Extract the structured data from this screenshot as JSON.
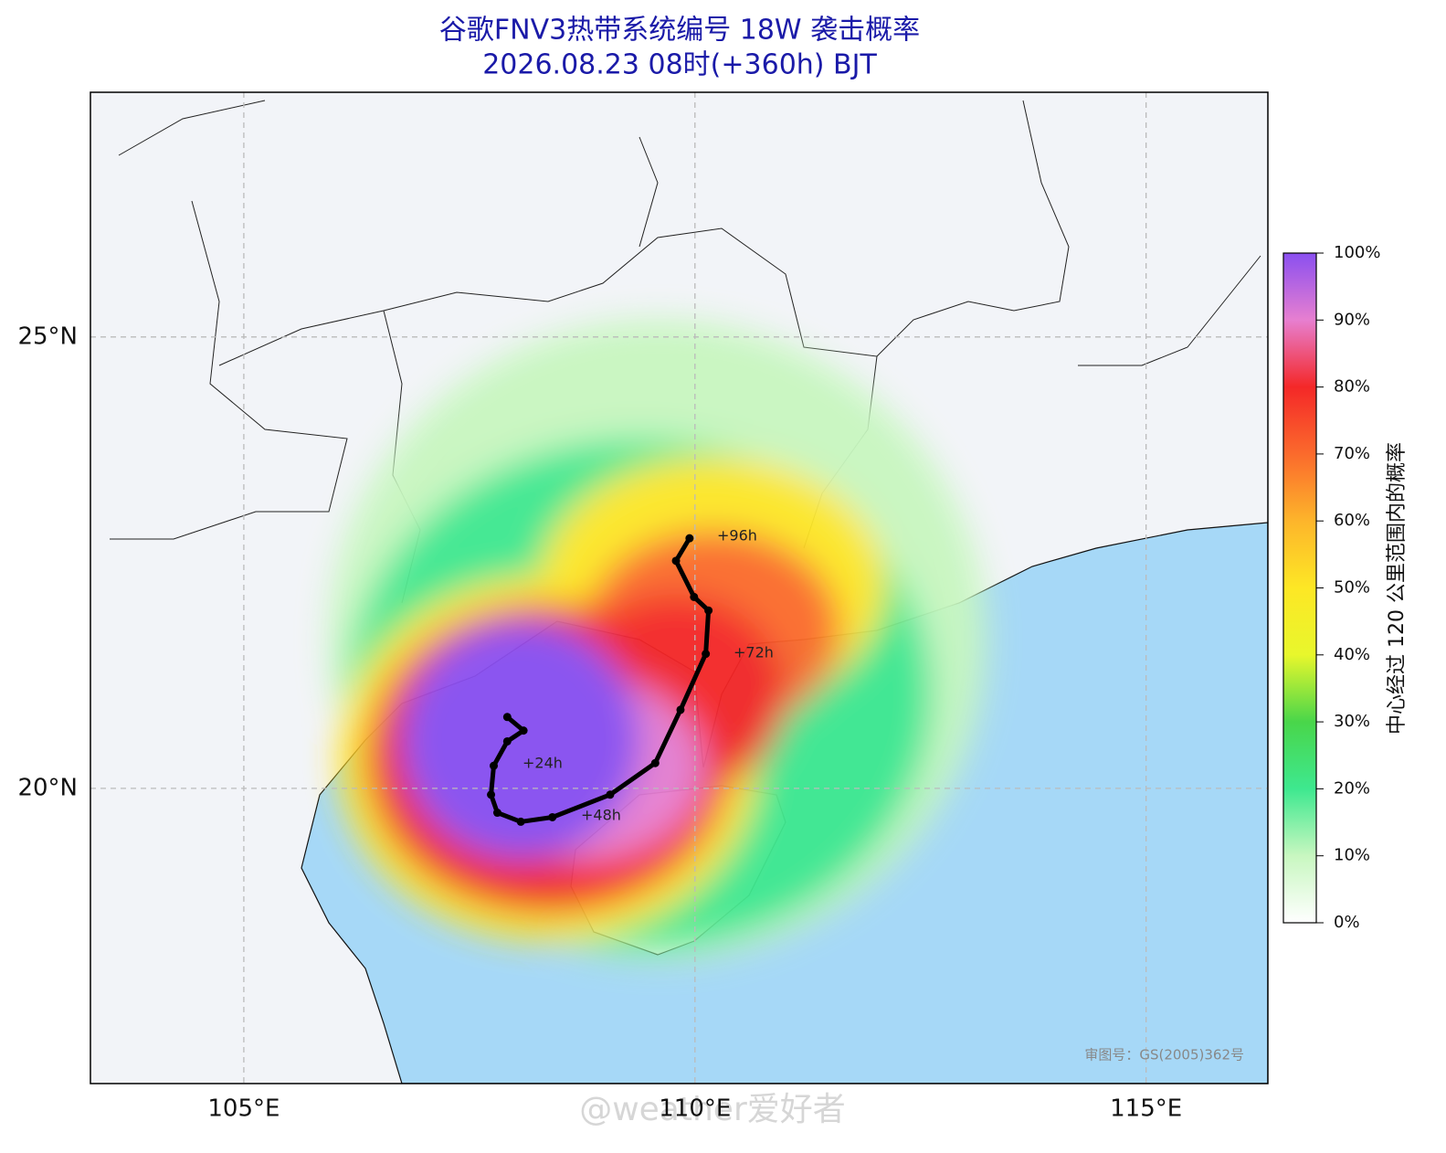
{
  "chart_data": {
    "type": "map",
    "title": "谷歌FNV3热带系统编号 18W 袭击概率",
    "subtitle": "2026.08.23 08时(+360h) BJT",
    "xlim": [
      103.3,
      116.35
    ],
    "ylim": [
      16.73,
      27.71
    ],
    "xticks": [
      {
        "value": 105,
        "label": "105°E"
      },
      {
        "value": 110,
        "label": "110°E"
      },
      {
        "value": 115,
        "label": "115°E"
      }
    ],
    "yticks": [
      {
        "value": 20,
        "label": "20°N"
      },
      {
        "value": 25,
        "label": "25°N"
      }
    ],
    "grid": true,
    "track": {
      "color": "#000000",
      "lons": [
        107.92,
        108.1,
        107.92,
        107.77,
        107.74,
        107.81,
        108.07,
        108.42,
        109.06,
        109.56,
        109.84,
        110.12,
        110.15,
        109.99,
        109.79,
        109.94
      ],
      "lats": [
        20.79,
        20.64,
        20.52,
        20.25,
        19.93,
        19.73,
        19.63,
        19.68,
        19.93,
        20.28,
        20.87,
        21.49,
        21.97,
        22.12,
        22.52,
        22.77
      ]
    },
    "annotations": [
      "+24h",
      "+48h",
      "+72h",
      "+96h"
    ],
    "colorbar": {
      "label": "中心经过 120 公里范围内的概率",
      "lim": [
        0,
        100
      ],
      "ticks": [
        {
          "value": 0,
          "label": "0%"
        },
        {
          "value": 10,
          "label": "10%"
        },
        {
          "value": 20,
          "label": "20%"
        },
        {
          "value": 30,
          "label": "30%"
        },
        {
          "value": 40,
          "label": "40%"
        },
        {
          "value": 50,
          "label": "50%"
        },
        {
          "value": 60,
          "label": "60%"
        },
        {
          "value": 70,
          "label": "70%"
        },
        {
          "value": 80,
          "label": "80%"
        },
        {
          "value": 90,
          "label": "90%"
        },
        {
          "value": 100,
          "label": "100%"
        }
      ]
    },
    "credit": "审图号：GS(2005)362号",
    "watermark": "@weather爱好者"
  }
}
